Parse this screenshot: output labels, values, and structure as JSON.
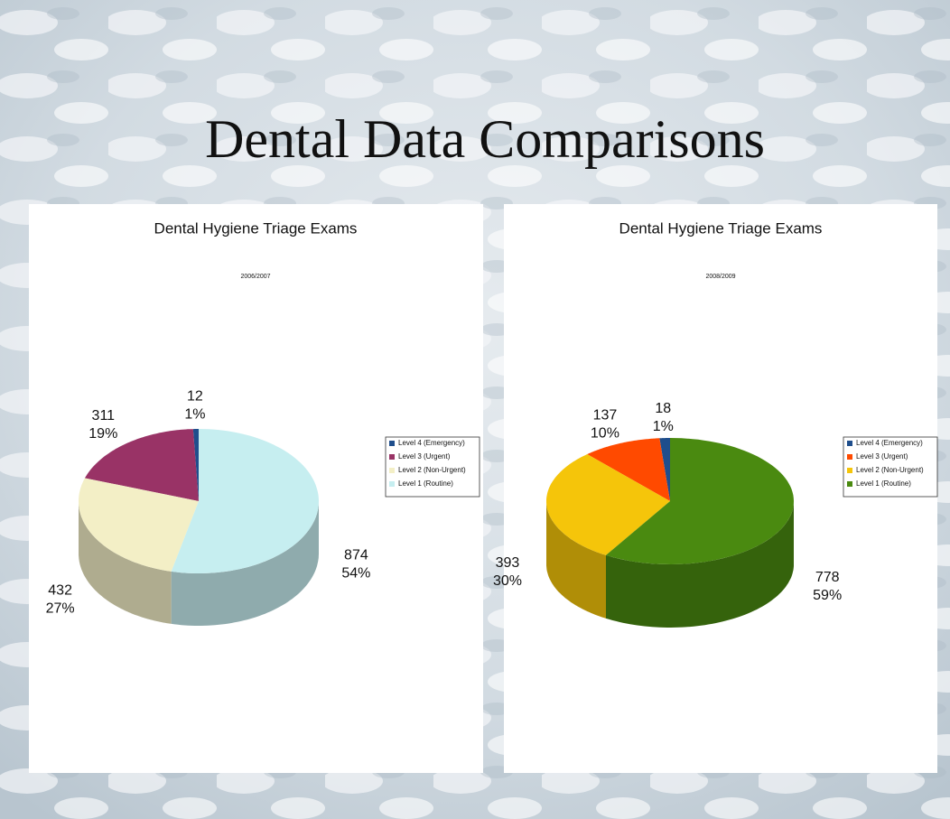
{
  "title": "Dental Data Comparisons",
  "chart_data": [
    {
      "type": "pie",
      "title": "Dental Hygiene Triage Exams",
      "subtitle": "2006/2007",
      "categories": [
        "Level 4 (Emergency)",
        "Level 3 (Urgent)",
        "Level 2 (Non-Urgent)",
        "Level 1 (Routine)"
      ],
      "values": [
        12,
        311,
        432,
        874
      ],
      "percent_labels": [
        "1%",
        "19%",
        "27%",
        "54%"
      ],
      "colors": [
        "#1f4e8c",
        "#993366",
        "#f3efc6",
        "#c6eef0"
      ]
    },
    {
      "type": "pie",
      "title": "Dental Hygiene Triage Exams",
      "subtitle": "2008/2009",
      "categories": [
        "Level 4 (Emergency)",
        "Level 3 (Urgent)",
        "Level 2 (Non-Urgent)",
        "Level 1 (Routine)"
      ],
      "values": [
        18,
        137,
        393,
        778
      ],
      "percent_labels": [
        "1%",
        "10%",
        "30%",
        "59%"
      ],
      "colors": [
        "#1f4e8c",
        "#ff4a00",
        "#f5c50a",
        "#4a8a10"
      ]
    }
  ]
}
